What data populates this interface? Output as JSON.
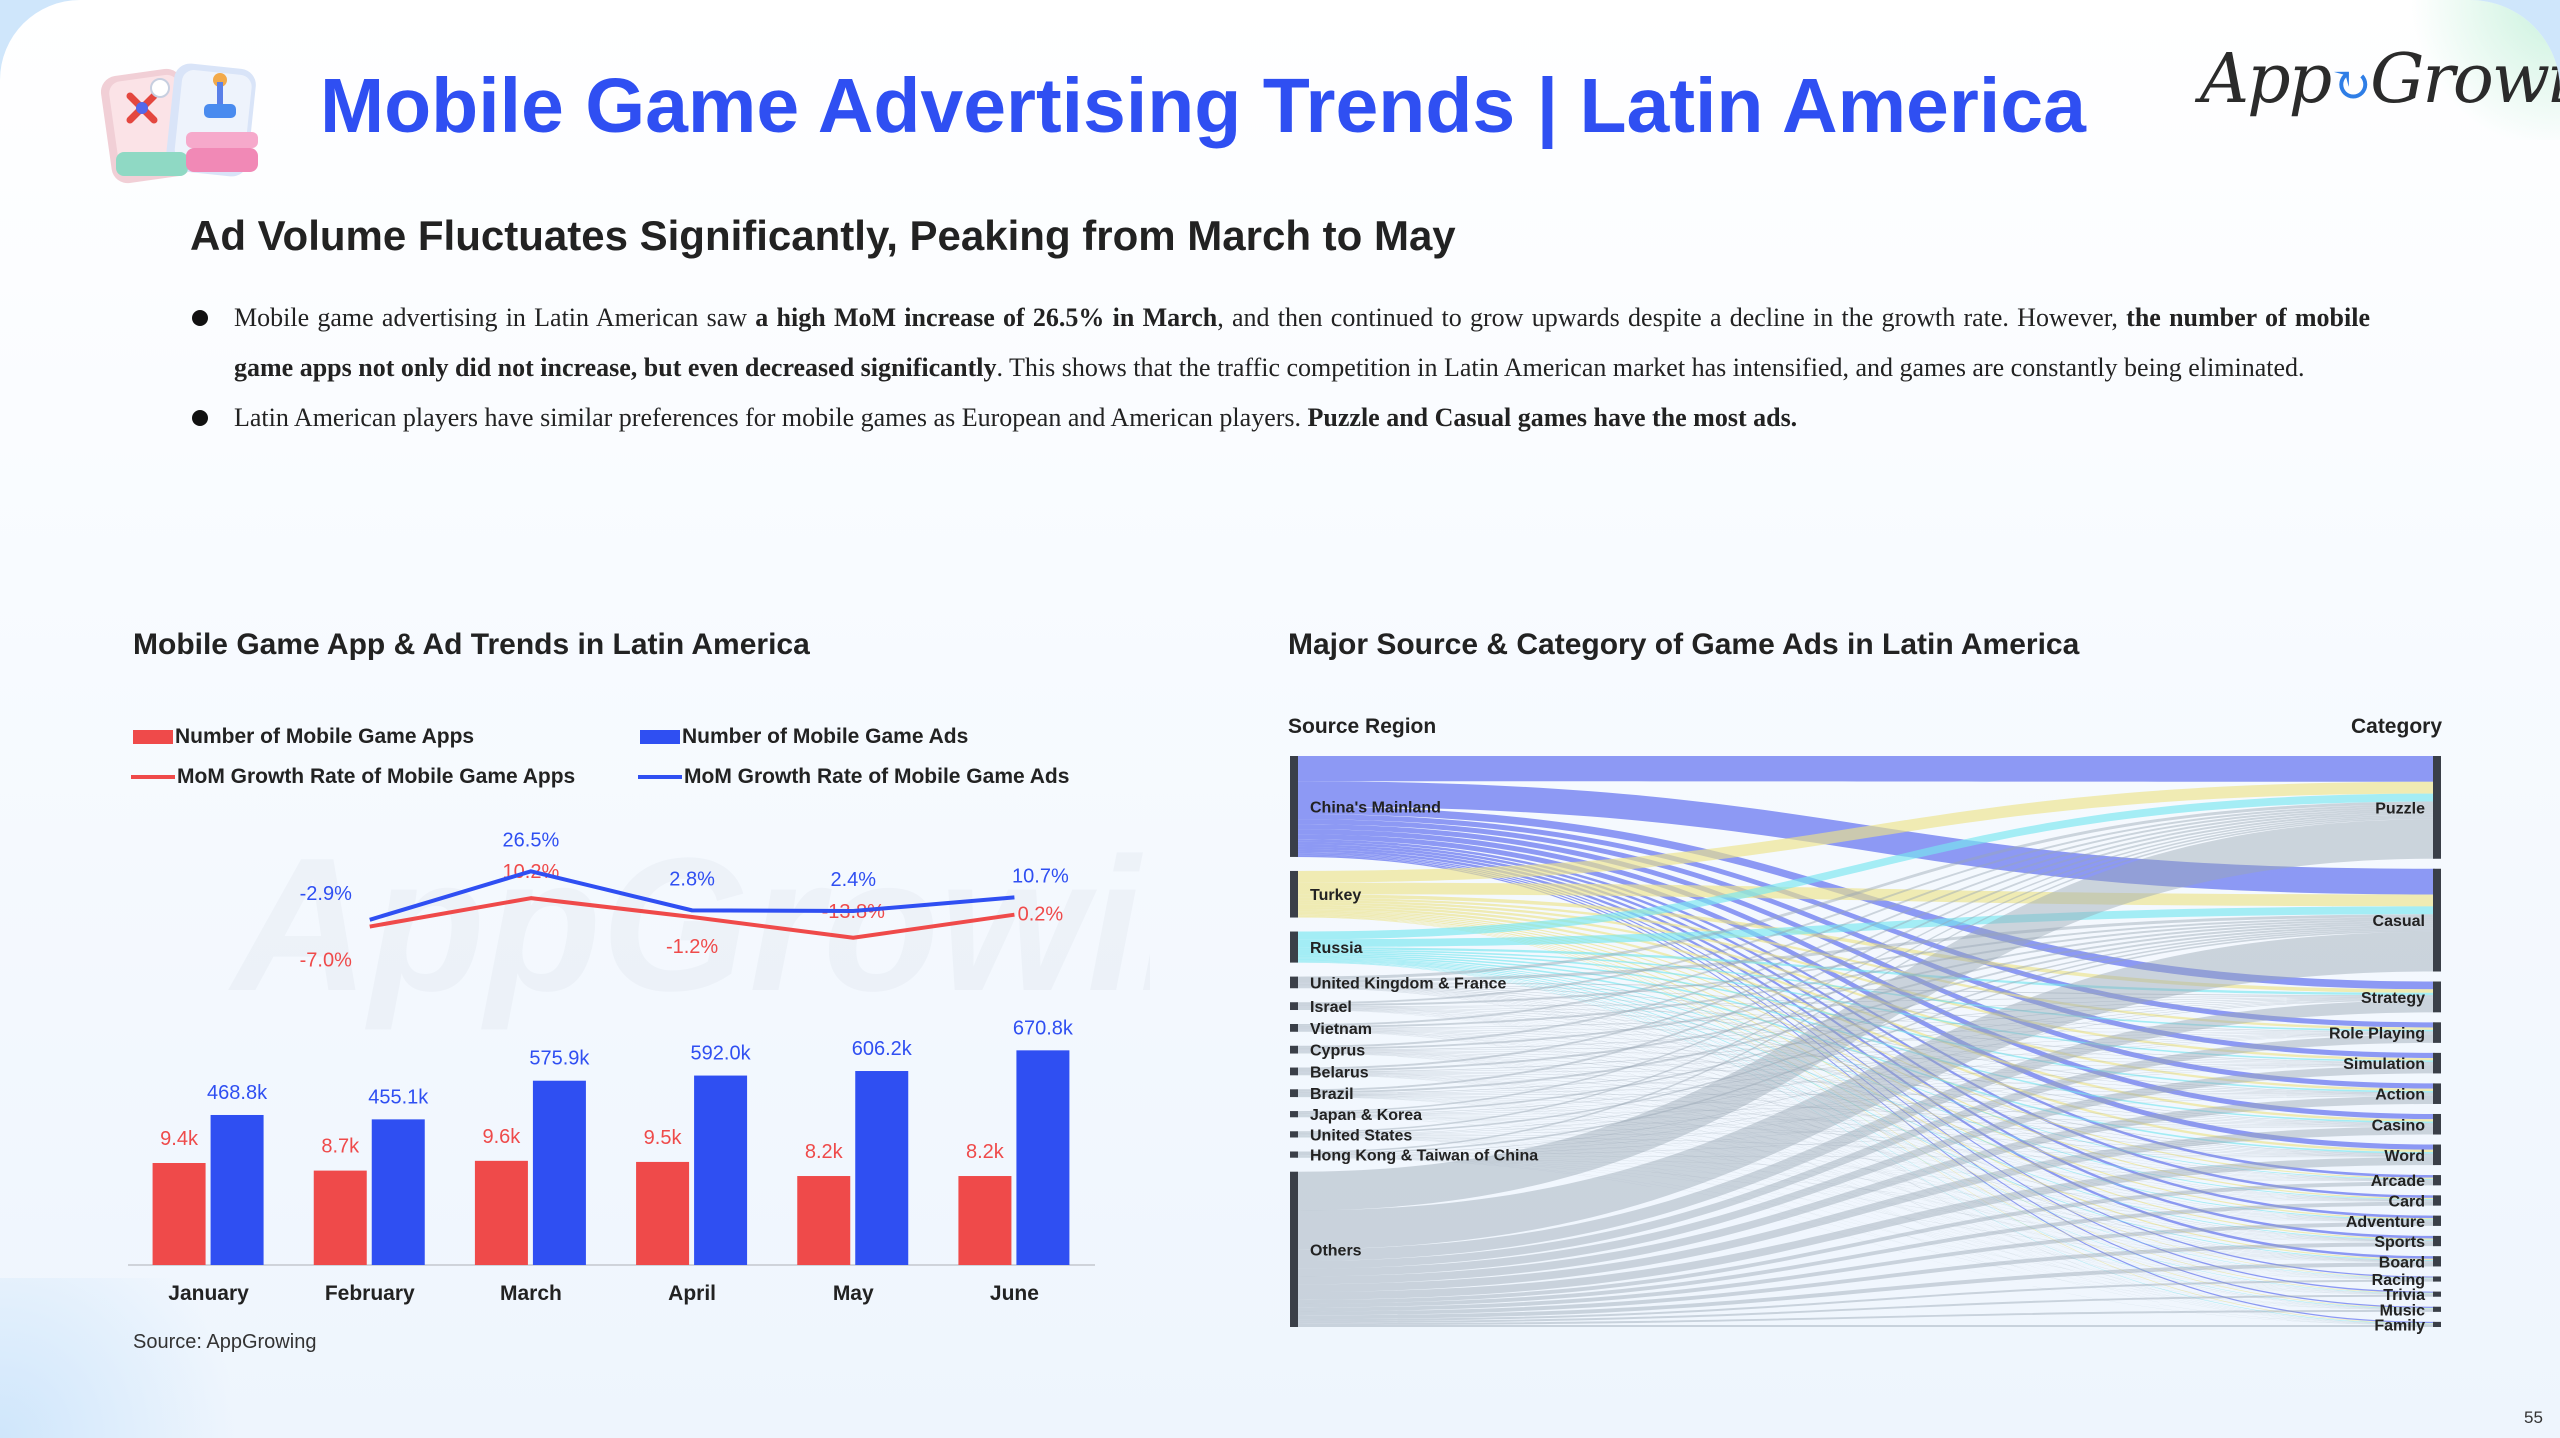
{
  "title": "Mobile Game Advertising Trends | Latin America",
  "logo_text": "AppGrowing",
  "subtitle": "Ad Volume Fluctuates Significantly, Peaking from March to May",
  "bullets": [
    {
      "p1": "Mobile game advertising in Latin American saw ",
      "b1": "a high MoM increase of 26.5% in March",
      "p2": ", and then continued to grow upwards despite a decline in the growth rate. However, ",
      "b2": "the number of mobile game apps not only did not increase, but even decreased significantly",
      "p3": ". This shows that the traffic competition in Latin American market has intensified, and games are constantly being eliminated."
    },
    {
      "p1": "Latin American players have similar preferences for mobile games as European and American players. ",
      "b1": "Puzzle and Casual games have the most ads."
    }
  ],
  "left_chart_title": "Mobile Game App & Ad Trends in Latin America",
  "right_chart_title": "Major Source & Category of Game Ads in Latin America",
  "source_note": "Source: AppGrowing",
  "page_number": "55",
  "colors": {
    "title_blue": "#2f4ff2",
    "apps_red": "#ef4a4a",
    "ads_blue": "#2f4ff2",
    "flow_gray": "#9aa6b4",
    "flow_blue": "#5566ee",
    "flow_yellow": "#ece48a",
    "flow_cyan": "#78e6ef"
  },
  "chart_data": [
    {
      "type": "bar",
      "categories": [
        "January",
        "February",
        "March",
        "April",
        "May",
        "June"
      ],
      "legend": [
        "Number of Mobile Game Apps",
        "Number of Mobile Game Ads",
        "MoM Growth Rate of Mobile Game Apps",
        "MoM Growth Rate of Mobile Game Ads"
      ],
      "series": [
        {
          "name": "Number of Mobile Game Apps",
          "kind": "bar",
          "color": "#ef4a4a",
          "values": [
            9.4,
            8.7,
            9.6,
            9.5,
            8.2,
            8.2
          ],
          "labels": [
            "9.4k",
            "8.7k",
            "9.6k",
            "9.5k",
            "8.2k",
            "8.2k"
          ]
        },
        {
          "name": "Number of Mobile Game Ads",
          "kind": "bar",
          "color": "#2f4ff2",
          "values": [
            468.8,
            455.1,
            575.9,
            592.0,
            606.2,
            670.8
          ],
          "labels": [
            "468.8k",
            "455.1k",
            "575.9k",
            "592.0k",
            "606.2k",
            "670.8k"
          ]
        },
        {
          "name": "MoM Growth Rate of Mobile Game Apps",
          "kind": "line",
          "color": "#ef4a4a",
          "x": [
            "February",
            "March",
            "April",
            "May",
            "June"
          ],
          "values": [
            -7.0,
            10.2,
            -1.2,
            -13.8,
            0.2
          ],
          "labels": [
            "-7.0%",
            "10.2%",
            "-1.2%",
            "-13.8%",
            "0.2%"
          ]
        },
        {
          "name": "MoM Growth Rate of Mobile Game Ads",
          "kind": "line",
          "color": "#2f4ff2",
          "x": [
            "February",
            "March",
            "April",
            "May",
            "June"
          ],
          "values": [
            -2.9,
            26.5,
            2.8,
            2.4,
            10.7
          ],
          "labels": [
            "-2.9%",
            "26.5%",
            "2.8%",
            "2.4%",
            "10.7%"
          ]
        }
      ]
    },
    {
      "type": "sankey",
      "left_header": "Source Region",
      "right_header": "Category",
      "sources": [
        {
          "name": "China's Mainland",
          "share": 13
        },
        {
          "name": "Turkey",
          "share": 6
        },
        {
          "name": "Russia",
          "share": 4
        },
        {
          "name": "United Kingdom & France",
          "share": 1.5
        },
        {
          "name": "Israel",
          "share": 1
        },
        {
          "name": "Vietnam",
          "share": 1
        },
        {
          "name": "Cyprus",
          "share": 1
        },
        {
          "name": "Belarus",
          "share": 1
        },
        {
          "name": "Brazil",
          "share": 1
        },
        {
          "name": "Japan & Korea",
          "share": 0.8
        },
        {
          "name": "United States",
          "share": 0.8
        },
        {
          "name": "Hong Kong & Taiwan of China",
          "share": 0.8
        },
        {
          "name": "Others",
          "share": 20
        }
      ],
      "categories": [
        {
          "name": "Puzzle",
          "share": 10
        },
        {
          "name": "Casual",
          "share": 10
        },
        {
          "name": "Strategy",
          "share": 3
        },
        {
          "name": "Role Playing",
          "share": 2
        },
        {
          "name": "Simulation",
          "share": 2
        },
        {
          "name": "Action",
          "share": 2
        },
        {
          "name": "Casino",
          "share": 2
        },
        {
          "name": "Word",
          "share": 2
        },
        {
          "name": "Arcade",
          "share": 1
        },
        {
          "name": "Card",
          "share": 1
        },
        {
          "name": "Adventure",
          "share": 1
        },
        {
          "name": "Sports",
          "share": 1
        },
        {
          "name": "Board",
          "share": 1
        },
        {
          "name": "Racing",
          "share": 0.5
        },
        {
          "name": "Trivia",
          "share": 0.5
        },
        {
          "name": "Music",
          "share": 0.5
        },
        {
          "name": "Family",
          "share": 0.5
        }
      ]
    }
  ]
}
